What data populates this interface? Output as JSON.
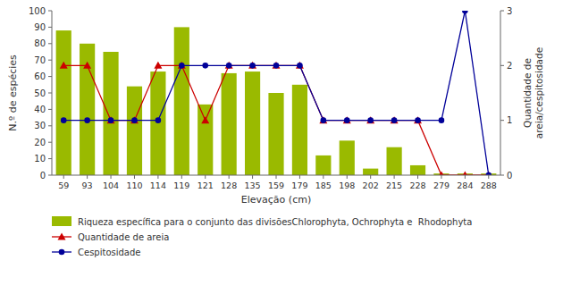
{
  "chart_data": {
    "type": "bar",
    "xlabel": "Elevação (cm)",
    "ylabel": "N.º de espécies",
    "y2label": "Quantidade de\nareia/cespitosidade",
    "categories": [
      "59",
      "93",
      "104",
      "110",
      "114",
      "119",
      "121",
      "128",
      "135",
      "159",
      "179",
      "185",
      "198",
      "202",
      "215",
      "228",
      "279",
      "284",
      "288"
    ],
    "series": [
      {
        "name": "Riqueza específica para o conjunto das divisõesChlorophyta, Ochrophyta e  Rhodophyta",
        "type": "bar",
        "color": "#9aba00",
        "values": [
          88,
          80,
          75,
          54,
          63,
          90,
          43,
          62,
          63,
          50,
          55,
          12,
          21,
          4,
          17,
          6,
          1,
          1,
          1
        ]
      },
      {
        "name": "Quantidade de areia",
        "type": "line",
        "axis": "y2",
        "color": "#cc0000",
        "marker": "triangle",
        "values": [
          2,
          2,
          1,
          1,
          2,
          2,
          1,
          2,
          2,
          2,
          2,
          1,
          1,
          1,
          1,
          1,
          0,
          0,
          0
        ]
      },
      {
        "name": "Cespitosidade",
        "type": "line",
        "axis": "y2",
        "color": "#000099",
        "marker": "circle",
        "values": [
          1,
          1,
          1,
          1,
          1,
          2,
          2,
          2,
          2,
          2,
          2,
          1,
          1,
          1,
          1,
          1,
          1,
          3,
          0
        ]
      }
    ],
    "ylim": [
      0,
      100
    ],
    "yticks": [
      0,
      10,
      20,
      30,
      40,
      50,
      60,
      70,
      80,
      90,
      100
    ],
    "y2lim": [
      0,
      3
    ],
    "y2ticks": [
      0,
      1,
      2,
      3
    ],
    "grid": false,
    "legend": "bottom"
  }
}
